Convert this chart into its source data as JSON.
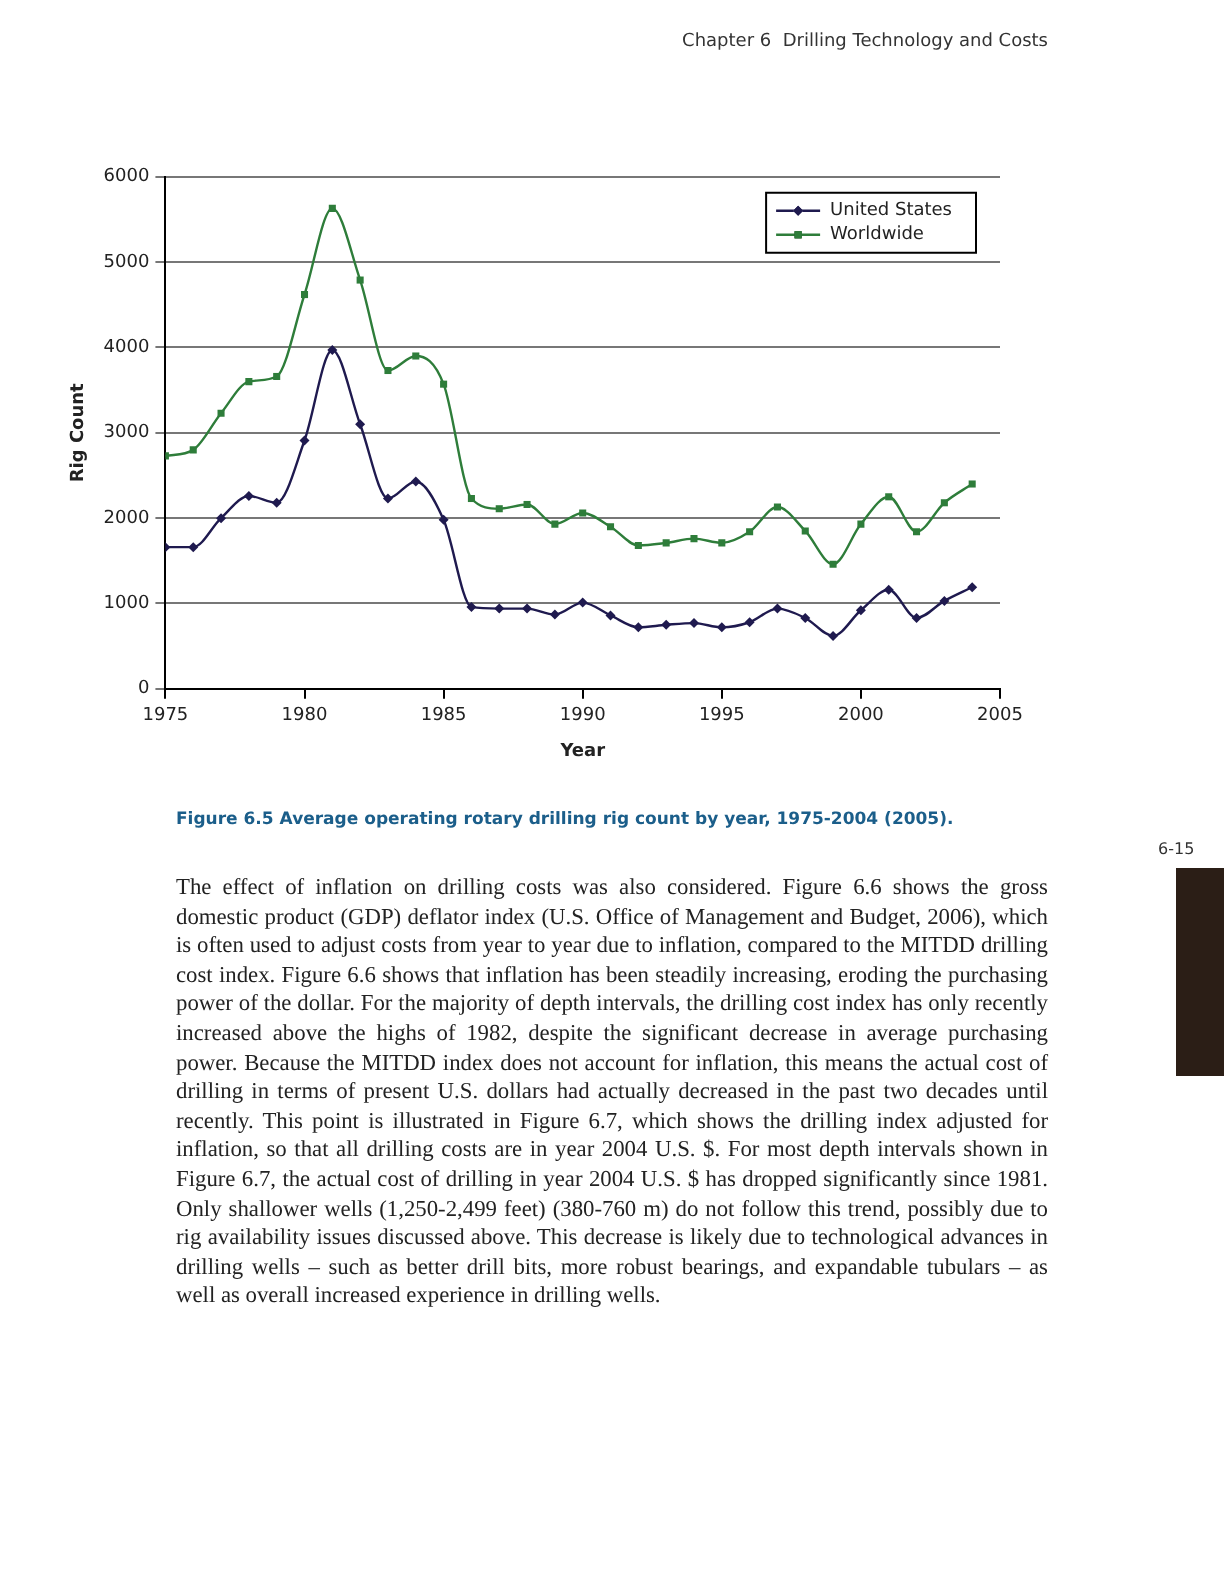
{
  "chart_data": {
    "type": "line",
    "xlabel": "Year",
    "ylabel": "Rig Count",
    "x": [
      1975,
      1976,
      1977,
      1978,
      1979,
      1980,
      1981,
      1982,
      1983,
      1984,
      1985,
      1986,
      1987,
      1988,
      1989,
      1990,
      1991,
      1992,
      1993,
      1994,
      1995,
      1996,
      1997,
      1998,
      1999,
      2000,
      2001,
      2002,
      2003,
      2004
    ],
    "series": [
      {
        "name": "United States",
        "color": "#1f1a4f",
        "marker": "diamond",
        "values": [
          1660,
          1660,
          2000,
          2260,
          2180,
          2910,
          3970,
          3100,
          2230,
          2430,
          1980,
          960,
          940,
          940,
          870,
          1010,
          860,
          720,
          750,
          770,
          720,
          780,
          940,
          830,
          620,
          920,
          1160,
          830,
          1030,
          1190
        ]
      },
      {
        "name": "Worldwide",
        "color": "#2e7d3a",
        "marker": "square",
        "values": [
          2730,
          2800,
          3230,
          3600,
          3660,
          4620,
          5630,
          4790,
          3730,
          3900,
          3570,
          2230,
          2110,
          2160,
          1930,
          2060,
          1900,
          1680,
          1710,
          1760,
          1710,
          1840,
          2130,
          1850,
          1460,
          1930,
          2250,
          1840,
          2180,
          2400
        ]
      }
    ],
    "xlim": [
      1975,
      2005
    ],
    "xticks": [
      1975,
      1980,
      1985,
      1990,
      1995,
      2000,
      2005
    ],
    "ylim": [
      0,
      6000
    ],
    "yticks": [
      0,
      1000,
      2000,
      3000,
      4000,
      5000,
      6000
    ],
    "grid": "y",
    "legend": "top right",
    "annotations": [
      "Chapter 6  Drilling Technology and Costs",
      "Figure 6.5 Average operating rotary drilling rig count by year, 1975-2004 (2005).",
      "The effect of inflation on drilling costs was also considered. Figure 6.6 shows the gross domestic product (GDP) deflator index (U.S. Office of Management and Budget, 2006), which is often used to adjust costs from year to year due to inflation, compared to the MITDD drilling cost index. Figure 6.6 shows that inflation has been steadily increasing, eroding the purchasing power of the dollar. For the majority of depth intervals, the drilling cost index has only recently increased above the highs of 1982, despite the significant decrease in average purchasing power. Because the MITDD index does not account for inflation, this means the actual cost of drilling in terms of present U.S. dollars had actually decreased in the past two decades until recently. This point is illustrated in Figure 6.7, which shows the drilling index adjusted for inflation, so that all drilling costs are in year 2004 U.S. $. For most depth intervals shown in Figure 6.7, the actual cost of drilling in year 2004 U.S. $ has dropped significantly since 1981. Only shallower wells (1,250-2,499 feet) (380-760 m) do not follow this trend, possibly due to rig availability issues discussed above. This decrease is likely due to technological advances in drilling wells – such as better drill bits, more robust bearings, and expandable tubulars – as well as overall increased experience in drilling wells.",
      "6-15"
    ]
  }
}
